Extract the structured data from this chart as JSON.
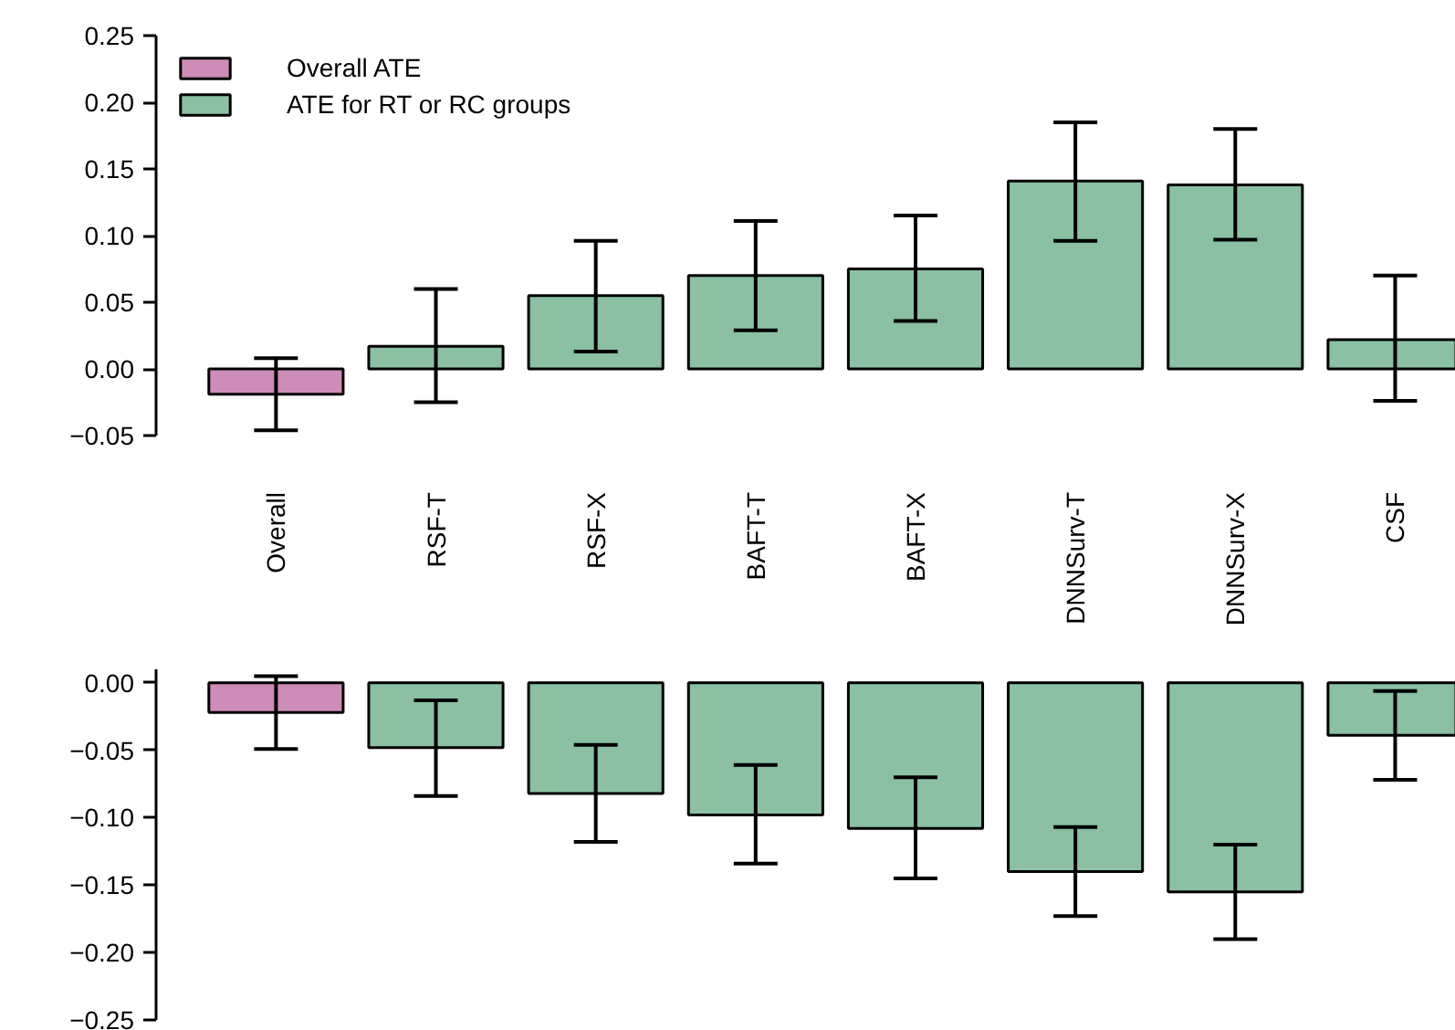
{
  "chart_data": [
    {
      "type": "bar",
      "categories": [
        "Overall",
        "RSF-T",
        "RSF-X",
        "BAFT-T",
        "BAFT-X",
        "DNNSurv-T",
        "DNNSurv-X",
        "CSF"
      ],
      "series": [
        {
          "name": "Overall ATE",
          "color": "#cd8db8",
          "values": [
            -0.019,
            null,
            null,
            null,
            null,
            null,
            null,
            null
          ],
          "errors": [
            [
              -0.046,
              0.008
            ],
            null,
            null,
            null,
            null,
            null,
            null,
            null
          ]
        },
        {
          "name": "ATE for RT or RC groups",
          "color": "#8bc0a3",
          "values": [
            null,
            0.017,
            0.055,
            0.07,
            0.075,
            0.141,
            0.138,
            0.022
          ],
          "errors": [
            null,
            [
              -0.025,
              0.06
            ],
            [
              0.013,
              0.096
            ],
            [
              0.029,
              0.111
            ],
            [
              0.036,
              0.115
            ],
            [
              0.096,
              0.185
            ],
            [
              0.097,
              0.18
            ],
            [
              -0.024,
              0.07
            ]
          ]
        }
      ],
      "ylim": [
        -0.05,
        0.25
      ],
      "yticks": [
        {
          "value": -0.05,
          "label": "−0.05"
        },
        {
          "value": 0,
          "label": "0.00"
        },
        {
          "value": 0.05,
          "label": "0.05"
        },
        {
          "value": 0.1,
          "label": "0.10"
        },
        {
          "value": 0.15,
          "label": "0.15"
        },
        {
          "value": 0.2,
          "label": "0.20"
        },
        {
          "value": 0.25,
          "label": "0.25"
        }
      ],
      "grid": false,
      "legend": "top left"
    },
    {
      "type": "bar",
      "categories": [
        null,
        null,
        null,
        null,
        null,
        null,
        null,
        null
      ],
      "series": [
        {
          "color": "#cd8db8",
          "values": [
            -0.022,
            null,
            null,
            null,
            null,
            null,
            null,
            null
          ],
          "errors": [
            [
              -0.049,
              0.005
            ],
            null,
            null,
            null,
            null,
            null,
            null,
            null
          ]
        },
        {
          "color": "#8bc0a3",
          "values": [
            null,
            -0.048,
            -0.082,
            -0.098,
            -0.108,
            -0.14,
            -0.155,
            -0.039
          ],
          "errors": [
            null,
            [
              -0.084,
              -0.013
            ],
            [
              -0.118,
              -0.046
            ],
            [
              -0.134,
              -0.061
            ],
            [
              -0.145,
              -0.07
            ],
            [
              -0.173,
              -0.107
            ],
            [
              -0.19,
              -0.12
            ],
            [
              -0.072,
              -0.006
            ]
          ]
        }
      ],
      "ylim": [
        -0.25,
        0.01
      ],
      "yticks": [
        {
          "value": -0.25,
          "label": "−0.25"
        },
        {
          "value": -0.2,
          "label": "−0.20"
        },
        {
          "value": -0.15,
          "label": "−0.15"
        },
        {
          "value": -0.1,
          "label": "−0.10"
        },
        {
          "value": -0.05,
          "label": "−0.05"
        },
        {
          "value": 0,
          "label": "0.00"
        }
      ],
      "grid": false,
      "tick_labels": "y"
    }
  ]
}
